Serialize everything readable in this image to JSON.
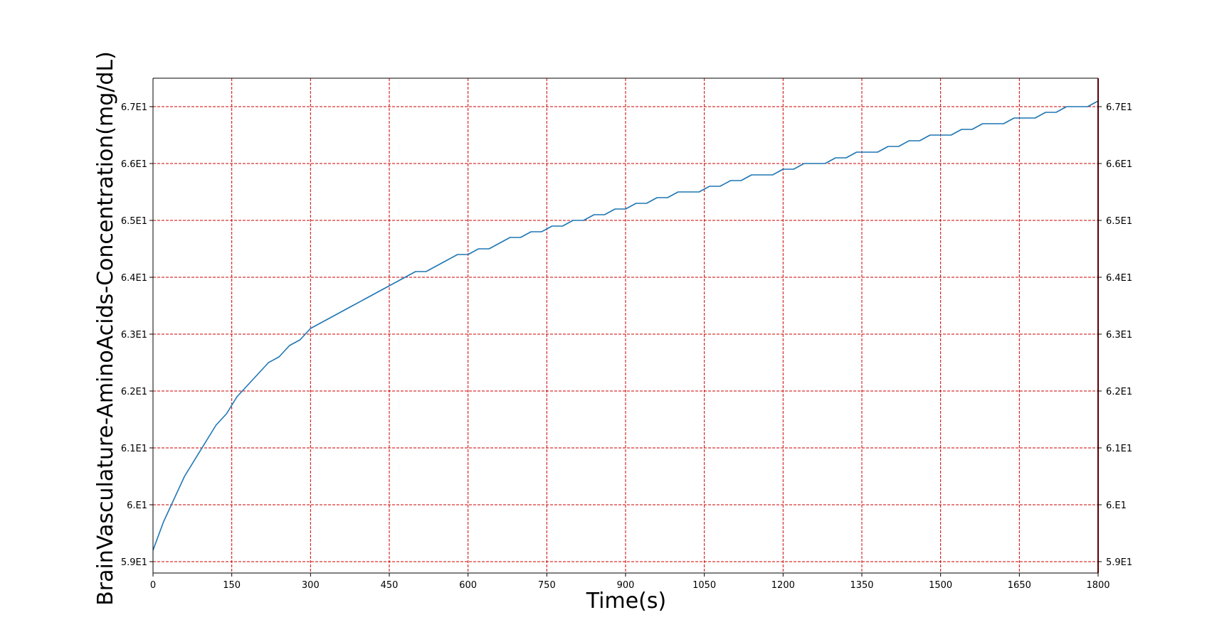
{
  "chart_data": {
    "type": "line",
    "title": "",
    "xlabel": "Time(s)",
    "ylabel": "BrainVasculature-AminoAcids-Concentration(mg/dL)",
    "xlim": [
      0,
      1800
    ],
    "ylim": [
      58.8,
      67.5
    ],
    "x_ticks": [
      0,
      150,
      300,
      450,
      600,
      750,
      900,
      1050,
      1200,
      1350,
      1500,
      1650,
      1800
    ],
    "x_tick_labels": [
      "0",
      "150",
      "300",
      "450",
      "600",
      "750",
      "900",
      "1050",
      "1200",
      "1350",
      "1500",
      "1650",
      "1800"
    ],
    "y_ticks": [
      59,
      60,
      61,
      62,
      63,
      64,
      65,
      66,
      67
    ],
    "y_tick_labels": [
      "5.9E1",
      "6.E1",
      "6.1E1",
      "6.2E1",
      "6.3E1",
      "6.4E1",
      "6.5E1",
      "6.6E1",
      "6.7E1"
    ],
    "grid": true,
    "grid_color": "#cc0000",
    "line_color": "#1f77b4",
    "right_axis_color": "#5a0000",
    "series": [
      {
        "x": [
          0,
          20,
          60,
          100,
          120,
          140,
          160,
          180,
          200,
          220,
          240,
          260,
          280,
          300,
          320,
          340,
          360,
          380,
          400,
          420,
          440,
          460,
          480,
          500,
          520,
          540,
          560,
          580,
          600,
          620,
          640,
          660,
          680,
          700,
          720,
          740,
          760,
          780,
          800,
          820,
          840,
          860,
          880,
          900,
          920,
          940,
          960,
          980,
          1000,
          1020,
          1040,
          1060,
          1080,
          1100,
          1120,
          1140,
          1160,
          1180,
          1200,
          1220,
          1240,
          1260,
          1280,
          1300,
          1320,
          1340,
          1360,
          1380,
          1400,
          1420,
          1440,
          1460,
          1480,
          1500,
          1520,
          1540,
          1560,
          1580,
          1600,
          1620,
          1640,
          1660,
          1680,
          1700,
          1720,
          1740,
          1760,
          1780,
          1800
        ],
        "values": [
          59.2,
          59.7,
          60.5,
          61.1,
          61.4,
          61.6,
          61.9,
          62.1,
          62.3,
          62.5,
          62.6,
          62.8,
          62.9,
          63.1,
          63.2,
          63.3,
          63.4,
          63.5,
          63.6,
          63.7,
          63.8,
          63.9,
          64.0,
          64.1,
          64.1,
          64.2,
          64.3,
          64.4,
          64.4,
          64.5,
          64.5,
          64.6,
          64.7,
          64.7,
          64.8,
          64.8,
          64.9,
          64.9,
          65.0,
          65.0,
          65.1,
          65.1,
          65.2,
          65.2,
          65.3,
          65.3,
          65.4,
          65.4,
          65.5,
          65.5,
          65.5,
          65.6,
          65.6,
          65.7,
          65.7,
          65.8,
          65.8,
          65.8,
          65.9,
          65.9,
          66.0,
          66.0,
          66.0,
          66.1,
          66.1,
          66.2,
          66.2,
          66.2,
          66.3,
          66.3,
          66.4,
          66.4,
          66.5,
          66.5,
          66.5,
          66.6,
          66.6,
          66.7,
          66.7,
          66.7,
          66.8,
          66.8,
          66.8,
          66.9,
          66.9,
          67.0,
          67.0,
          67.0,
          67.1
        ]
      }
    ]
  }
}
